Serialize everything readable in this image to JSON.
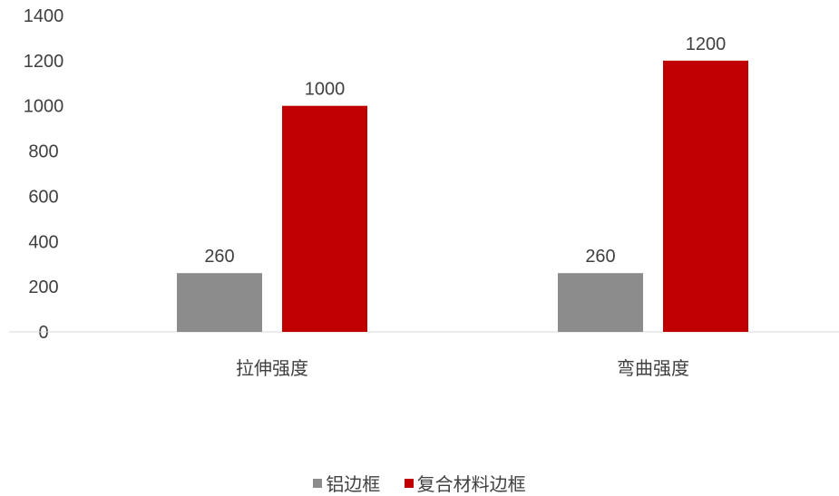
{
  "chart_data": {
    "type": "bar",
    "categories": [
      "拉伸强度",
      "弯曲强度"
    ],
    "series": [
      {
        "name": "铝边框",
        "values": [
          260,
          260
        ],
        "color": "#8c8c8c"
      },
      {
        "name": "复合材料边框",
        "values": [
          1000,
          1200
        ],
        "color": "#c00000"
      }
    ],
    "ylim": [
      0,
      1400
    ],
    "yticks": [
      0,
      200,
      400,
      600,
      800,
      1000,
      1200,
      1400
    ],
    "grid": false,
    "legend_position": "bottom"
  }
}
